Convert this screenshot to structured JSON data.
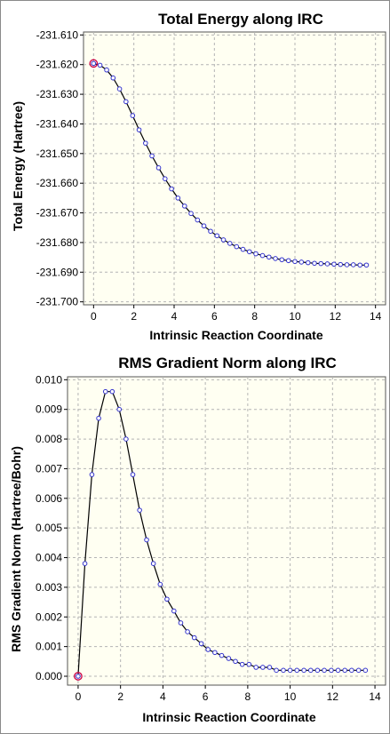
{
  "chart_data": [
    {
      "type": "line",
      "title": "Total Energy along IRC",
      "xlabel": "Intrinsic Reaction Coordinate",
      "ylabel": "Total Energy (Hartree)",
      "xlim": [
        -0.5,
        14.5
      ],
      "ylim": [
        -231.701,
        -231.609
      ],
      "xticks": [
        0,
        2,
        4,
        6,
        8,
        10,
        12,
        14
      ],
      "yticks": [
        -231.61,
        -231.62,
        -231.63,
        -231.64,
        -231.65,
        -231.66,
        -231.67,
        -231.68,
        -231.69,
        -231.7
      ],
      "ytick_labels": [
        "-231.610",
        "-231.620",
        "-231.630",
        "-231.640",
        "-231.650",
        "-231.660",
        "-231.670",
        "-231.680",
        "-231.690",
        "-231.700"
      ],
      "grid": true,
      "highlight_index": 0,
      "series": [
        {
          "color": "#000000",
          "marker_color": "#3333cc",
          "x": [
            0,
            0.32,
            0.65,
            0.97,
            1.29,
            1.61,
            1.94,
            2.26,
            2.58,
            2.9,
            3.23,
            3.55,
            3.87,
            4.19,
            4.52,
            4.84,
            5.16,
            5.48,
            5.81,
            6.13,
            6.45,
            6.77,
            7.1,
            7.42,
            7.74,
            8.06,
            8.39,
            8.71,
            9.03,
            9.35,
            9.68,
            10.0,
            10.32,
            10.65,
            10.97,
            11.29,
            11.61,
            11.94,
            12.26,
            12.58,
            12.9,
            13.23,
            13.55
          ],
          "y": [
            -231.6196,
            -231.6202,
            -231.6218,
            -231.6245,
            -231.6282,
            -231.6325,
            -231.6372,
            -231.642,
            -231.6465,
            -231.6508,
            -231.6548,
            -231.6585,
            -231.6619,
            -231.665,
            -231.6677,
            -231.6702,
            -231.6724,
            -231.6744,
            -231.6762,
            -231.6777,
            -231.6791,
            -231.6803,
            -231.6814,
            -231.6823,
            -231.6831,
            -231.6838,
            -231.6844,
            -231.6849,
            -231.6854,
            -231.6858,
            -231.6861,
            -231.6864,
            -231.6866,
            -231.6868,
            -231.687,
            -231.6871,
            -231.6872,
            -231.6873,
            -231.6874,
            -231.6875,
            -231.6875,
            -231.6876,
            -231.6876
          ]
        }
      ]
    },
    {
      "type": "line",
      "title": "RMS Gradient Norm along IRC",
      "xlabel": "Intrinsic Reaction Coordinate",
      "ylabel": "RMS Gradient Norm (Hartree/Bohr)",
      "xlim": [
        -0.5,
        14.5
      ],
      "ylim": [
        -0.0003,
        0.0101
      ],
      "xticks": [
        0,
        2,
        4,
        6,
        8,
        10,
        12,
        14
      ],
      "yticks": [
        0.0,
        0.001,
        0.002,
        0.003,
        0.004,
        0.005,
        0.006,
        0.007,
        0.008,
        0.009,
        0.01
      ],
      "ytick_labels": [
        "0.000",
        "0.001",
        "0.002",
        "0.003",
        "0.004",
        "0.005",
        "0.006",
        "0.007",
        "0.008",
        "0.009",
        "0.010"
      ],
      "grid": true,
      "highlight_index": 0,
      "series": [
        {
          "color": "#000000",
          "marker_color": "#3333cc",
          "x": [
            0,
            0.32,
            0.65,
            0.97,
            1.29,
            1.61,
            1.94,
            2.26,
            2.58,
            2.9,
            3.23,
            3.55,
            3.87,
            4.19,
            4.52,
            4.84,
            5.16,
            5.48,
            5.81,
            6.13,
            6.45,
            6.77,
            7.1,
            7.42,
            7.74,
            8.06,
            8.39,
            8.71,
            9.03,
            9.35,
            9.68,
            10.0,
            10.32,
            10.65,
            10.97,
            11.29,
            11.61,
            11.94,
            12.26,
            12.58,
            12.9,
            13.23,
            13.55
          ],
          "y": [
            0.0,
            0.0038,
            0.0068,
            0.0087,
            0.0096,
            0.0096,
            0.009,
            0.008,
            0.0068,
            0.0056,
            0.0046,
            0.0038,
            0.0031,
            0.0026,
            0.0022,
            0.0018,
            0.0015,
            0.0013,
            0.0011,
            0.0009,
            0.0008,
            0.0007,
            0.0006,
            0.0005,
            0.0004,
            0.0004,
            0.0003,
            0.0003,
            0.0003,
            0.0002,
            0.0002,
            0.0002,
            0.0002,
            0.0002,
            0.0002,
            0.0002,
            0.0002,
            0.0002,
            0.0002,
            0.0002,
            0.0002,
            0.0002,
            0.0002
          ]
        }
      ]
    }
  ]
}
